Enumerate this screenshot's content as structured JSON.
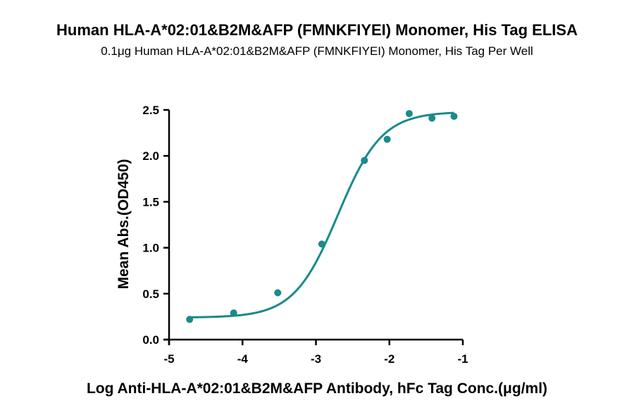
{
  "chart_data": {
    "type": "scatter",
    "title": "Human HLA-A*02:01&B2M&AFP (FMNKFIYEI) Monomer, His Tag ELISA",
    "subtitle": "0.1μg Human HLA-A*02:01&B2M&AFP (FMNKFIYEI) Monomer, His Tag Per Well",
    "xlabel": "Log Anti-HLA-A*02:01&B2M&AFP Antibody, hFc  Tag Conc.(μg/ml)",
    "ylabel": "Mean Abs.(OD450)",
    "xlim": [
      -5,
      -1
    ],
    "ylim": [
      0,
      2.5
    ],
    "x_ticks": [
      "-5",
      "-4",
      "-3",
      "-2",
      "-1"
    ],
    "y_ticks": [
      "0.0",
      "0.5",
      "1.0",
      "1.5",
      "2.0",
      "2.5"
    ],
    "grid": false,
    "series": [
      {
        "color": "#1a8a8a",
        "x": [
          -4.72,
          -4.12,
          -3.52,
          -2.92,
          -2.34,
          -2.03,
          -1.73,
          -1.42,
          -1.12
        ],
        "y": [
          0.22,
          0.29,
          0.51,
          1.04,
          1.95,
          2.18,
          2.46,
          2.41,
          2.43
        ],
        "fit": {
          "model": "4PL",
          "bottom": 0.24,
          "top": 2.48,
          "log_ec50": -2.7,
          "hill": 1.45
        }
      }
    ]
  }
}
